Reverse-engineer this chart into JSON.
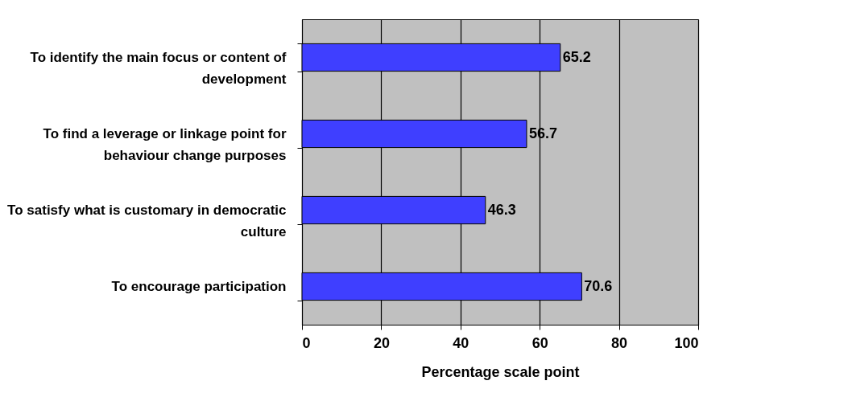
{
  "chart_data": {
    "type": "bar",
    "orientation": "horizontal",
    "xlabel": "Percentage scale point",
    "categories": [
      "To identify the main focus or content of development",
      "To find a leverage or linkage point for behaviour change purposes",
      "To satisfy what is customary in democratic culture",
      "To encourage participation"
    ],
    "values": [
      65.2,
      56.7,
      46.3,
      70.6
    ],
    "color": "#3f3fff",
    "xlim": [
      0,
      100
    ],
    "xticks": [
      0,
      20,
      40,
      60,
      80,
      100
    ],
    "grid": "x",
    "data_labels": true
  }
}
